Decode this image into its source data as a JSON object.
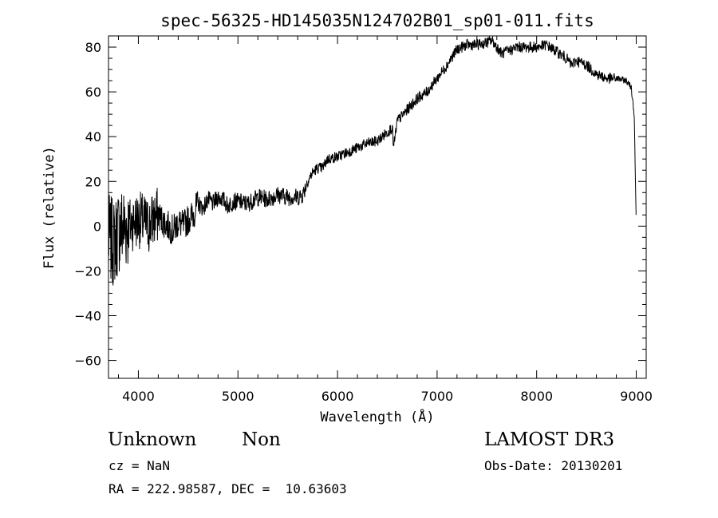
{
  "chart_data": {
    "type": "line",
    "title": "spec-56325-HD145035N124702B01_sp01-011.fits",
    "xlabel": "Wavelength (Å)",
    "ylabel": "Flux (relative)",
    "xlim": [
      3700,
      9100
    ],
    "ylim": [
      -68,
      85
    ],
    "xticks": [
      4000,
      5000,
      6000,
      7000,
      8000,
      9000
    ],
    "yticks": [
      -60,
      -40,
      -20,
      0,
      20,
      40,
      60,
      80
    ],
    "grid": false,
    "line_color": "#000000",
    "series": [
      {
        "x": [
          3700,
          3750,
          3800,
          3850,
          3900,
          3950,
          4000,
          4050,
          4100,
          4150,
          4200,
          4250,
          4300,
          4350,
          4400,
          4450,
          4500,
          4550,
          4600,
          4650,
          4700,
          4750,
          4800,
          4850,
          4900,
          4950,
          5000,
          5100,
          5200,
          5300,
          5400,
          5500,
          5600,
          5650,
          5700,
          5750,
          5800,
          5850,
          5900,
          6000,
          6100,
          6200,
          6300,
          6400,
          6500,
          6550,
          6563,
          6600,
          6700,
          6800,
          6900,
          7000,
          7100,
          7200,
          7300,
          7400,
          7500,
          7550,
          7600,
          7650,
          7700,
          7800,
          7900,
          8000,
          8100,
          8200,
          8300,
          8350,
          8400,
          8500,
          8600,
          8700,
          8800,
          8900,
          8950,
          8980,
          9000
        ],
        "y": [
          -5,
          -8,
          -2,
          0,
          0,
          2,
          3,
          2,
          0,
          3,
          5,
          2,
          0,
          -2,
          2,
          0,
          3,
          5,
          10,
          8,
          12,
          10,
          13,
          12,
          9,
          11,
          11,
          10,
          13,
          12,
          14,
          13,
          13,
          14,
          20,
          24,
          26,
          26,
          30,
          31,
          33,
          35,
          37,
          38,
          42,
          44,
          35,
          47,
          52,
          57,
          60,
          66,
          72,
          79,
          81,
          81,
          82,
          83,
          80,
          77,
          78,
          80,
          80,
          80,
          81,
          78,
          75,
          72,
          74,
          72,
          68,
          66,
          66,
          65,
          62,
          50,
          0
        ]
      }
    ]
  },
  "footer": {
    "object_name": "Unknown",
    "object_class": "Non",
    "survey": "LAMOST DR3",
    "cz": "cz = NaN",
    "obs_date": "Obs-Date: 20130201",
    "coords": "RA = 222.98587, DEC =  10.63603"
  }
}
